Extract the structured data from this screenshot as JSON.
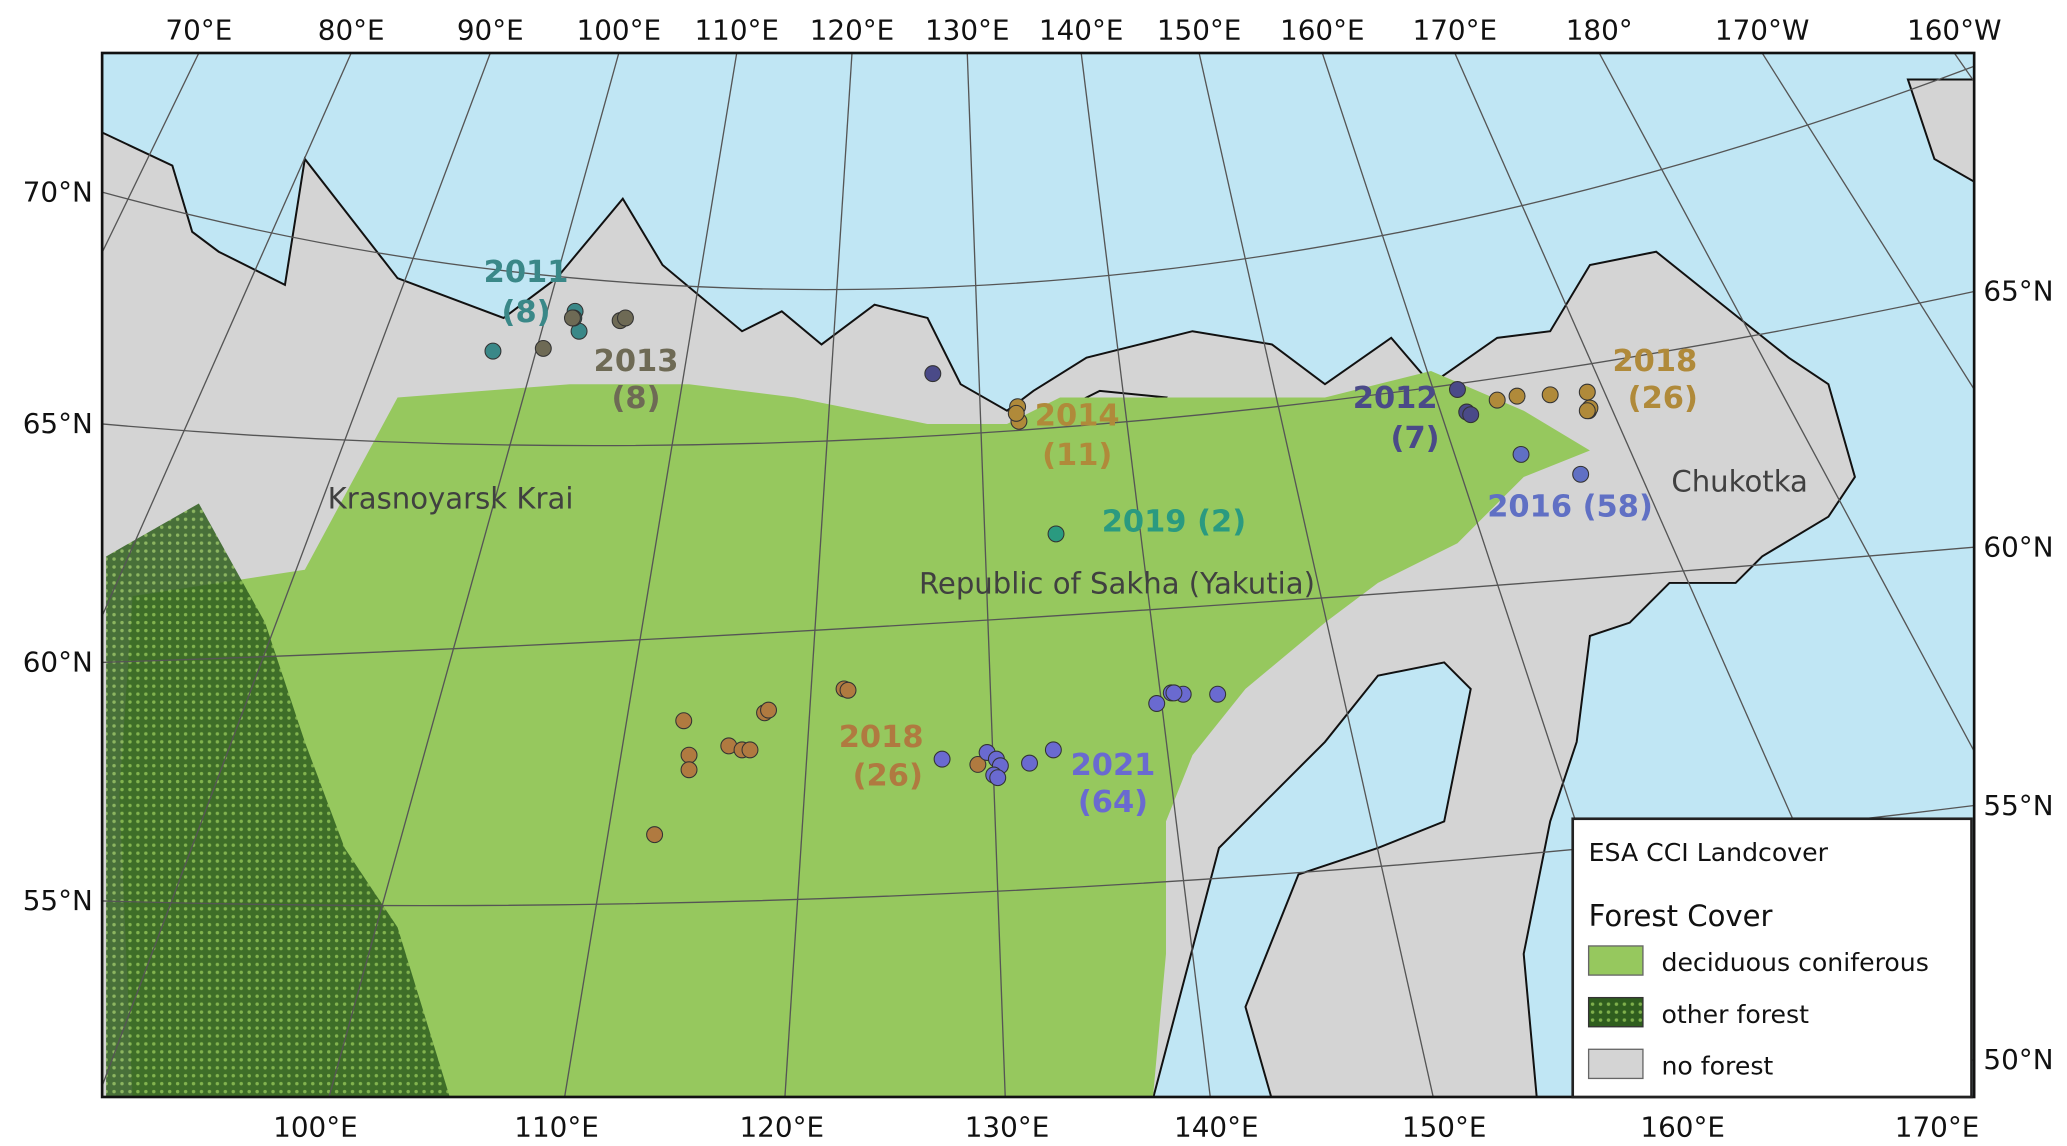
{
  "map": {
    "top_lon_labels": [
      "70°E",
      "80°E",
      "90°E",
      "100°E",
      "110°E",
      "120°E",
      "130°E",
      "140°E",
      "150°E",
      "160°E",
      "170°E",
      "180°",
      "170°W",
      "160°W"
    ],
    "bottom_lon_labels": [
      "100°E",
      "110°E",
      "120°E",
      "130°E",
      "140°E",
      "150°E",
      "160°E",
      "170°E"
    ],
    "left_lat_labels": [
      "70°N",
      "65°N",
      "60°N",
      "55°N"
    ],
    "right_lat_labels": [
      "65°N",
      "60°N",
      "55°N",
      "50°N"
    ],
    "regions": [
      "Krasnoyarsk Krai",
      "Republic of Sakha (Yakutia)",
      "Chukotka"
    ],
    "colors": {
      "ocean": "#c0e6f4",
      "no_forest": "#d4d4d4",
      "deciduous_coniferous": "#96c85e",
      "other_forest": "#2f5e1e"
    },
    "campaigns": [
      {
        "year": "2011",
        "count": "(8)",
        "color": "#3a8888"
      },
      {
        "year": "2013",
        "count": "(8)",
        "color": "#6e6a55"
      },
      {
        "year": "2014",
        "count": "(11)",
        "color": "#b08a3a"
      },
      {
        "year": "2019 (2)",
        "count": "",
        "color": "#2a9a80"
      },
      {
        "year": "2012",
        "count": "(7)",
        "color": "#4a4a88"
      },
      {
        "year": "2016 (58)",
        "count": "",
        "color": "#6070c4"
      },
      {
        "year": "2018",
        "count": "(26)",
        "color": "#b08a3a"
      },
      {
        "year": "2018",
        "count": "(26)",
        "color": "#b07a40"
      },
      {
        "year": "2021",
        "count": "(64)",
        "color": "#6a6ad0"
      }
    ]
  },
  "legend": {
    "title": "ESA CCI Landcover",
    "subtitle": "Forest Cover",
    "items": [
      {
        "label": "deciduous coniferous",
        "color": "#96c85e"
      },
      {
        "label": "other forest",
        "color": "#2f5e1e"
      },
      {
        "label": "no forest",
        "color": "#d4d4d4"
      }
    ]
  }
}
